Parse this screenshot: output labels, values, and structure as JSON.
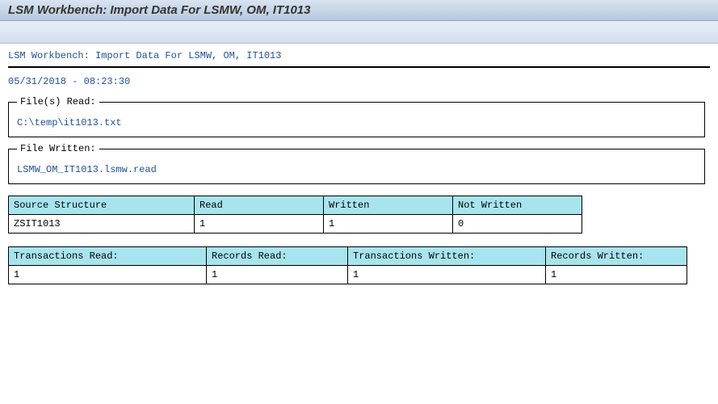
{
  "header": {
    "title": "LSM Workbench: Import Data For LSMW, OM, IT1013",
    "subtitle": "LSM Workbench: Import Data For LSMW, OM, IT1013",
    "timestamp": "05/31/2018 - 08:23:30"
  },
  "files_read": {
    "legend": "File(s) Read:",
    "value": "C:\\temp\\it1013.txt"
  },
  "file_written": {
    "legend": "File Written:",
    "value": "LSMW_OM_IT1013.lsmw.read"
  },
  "source_table": {
    "headers": [
      "Source Structure",
      "Read",
      "Written",
      "Not Written"
    ],
    "row": {
      "structure": "ZSIT1013",
      "read": "1",
      "written": "1",
      "not_written": "0"
    }
  },
  "summary_table": {
    "headers": [
      "Transactions Read:",
      "Records Read:",
      "Transactions Written:",
      "Records Written:"
    ],
    "row": {
      "trx_read": "1",
      "rec_read": "1",
      "trx_written": "1",
      "rec_written": "1"
    }
  },
  "colors": {
    "header_bg": "#a8e4ee",
    "link_text": "#2050a0"
  }
}
